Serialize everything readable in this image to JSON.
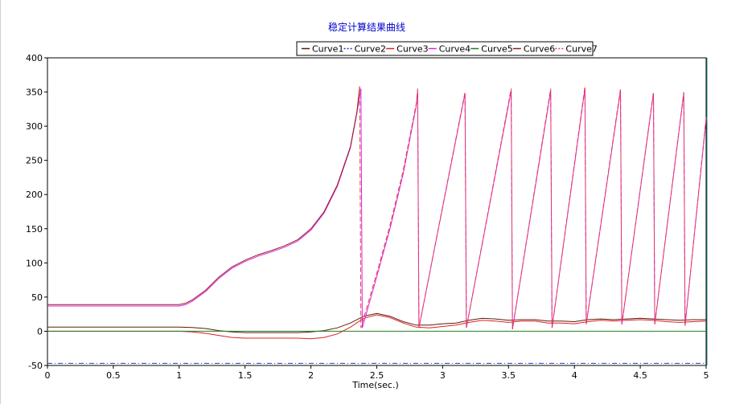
{
  "chart_data": {
    "type": "line",
    "title": "稳定计算结果曲线",
    "xlabel": "Time(sec.)",
    "ylabel": "",
    "xlim": [
      0,
      5
    ],
    "ylim": [
      -50,
      400
    ],
    "x_ticks": [
      "0",
      "0.5",
      "1",
      "1.5",
      "2",
      "2.5",
      "3",
      "3.5",
      "4",
      "4.5",
      "5"
    ],
    "y_ticks": [
      "-50",
      "0",
      "50",
      "100",
      "150",
      "200",
      "250",
      "300",
      "350",
      "400"
    ],
    "grid": true,
    "legend_position": "top-center",
    "series": [
      {
        "name": "Curve1",
        "color": "#5a1e0a",
        "style": "solid",
        "points": [
          [
            0,
            6
          ],
          [
            1,
            6
          ],
          [
            1.1,
            5.5
          ],
          [
            1.2,
            4
          ],
          [
            1.3,
            1
          ],
          [
            1.4,
            -1
          ],
          [
            1.5,
            -2
          ],
          [
            1.7,
            -2
          ],
          [
            1.9,
            -2
          ],
          [
            2.0,
            -1
          ],
          [
            2.1,
            1
          ],
          [
            2.2,
            5
          ],
          [
            2.3,
            12
          ],
          [
            2.4,
            22
          ],
          [
            2.5,
            26
          ],
          [
            2.6,
            22
          ],
          [
            2.7,
            14
          ],
          [
            2.8,
            9
          ],
          [
            2.9,
            9
          ],
          [
            3.0,
            11
          ],
          [
            3.1,
            12
          ],
          [
            3.2,
            16
          ],
          [
            3.3,
            19
          ],
          [
            3.4,
            18
          ],
          [
            3.5,
            16
          ],
          [
            3.6,
            17
          ],
          [
            3.7,
            17
          ],
          [
            3.8,
            15
          ],
          [
            3.9,
            15
          ],
          [
            4.0,
            14
          ],
          [
            4.1,
            17
          ],
          [
            4.2,
            18
          ],
          [
            4.3,
            17
          ],
          [
            4.4,
            18
          ],
          [
            4.5,
            19
          ],
          [
            4.6,
            18
          ],
          [
            4.7,
            17
          ],
          [
            4.8,
            16
          ],
          [
            4.9,
            17
          ],
          [
            5.0,
            17
          ]
        ]
      },
      {
        "name": "Curve2",
        "color": "#1e3cb4",
        "style": "dashdot",
        "points": [
          [
            0,
            -47
          ],
          [
            5,
            -47
          ]
        ]
      },
      {
        "name": "Curve3",
        "color": "#e02020",
        "style": "solid",
        "points": [
          [
            0,
            0
          ],
          [
            1,
            0
          ],
          [
            1.1,
            -1
          ],
          [
            1.2,
            -3
          ],
          [
            1.3,
            -6
          ],
          [
            1.4,
            -9
          ],
          [
            1.5,
            -10
          ],
          [
            1.7,
            -10
          ],
          [
            1.9,
            -10
          ],
          [
            2.0,
            -11
          ],
          [
            2.1,
            -9
          ],
          [
            2.2,
            -4
          ],
          [
            2.3,
            6
          ],
          [
            2.4,
            19
          ],
          [
            2.5,
            24
          ],
          [
            2.6,
            20
          ],
          [
            2.7,
            12
          ],
          [
            2.8,
            6
          ],
          [
            2.9,
            5
          ],
          [
            3.0,
            7
          ],
          [
            3.1,
            9
          ],
          [
            3.2,
            13
          ],
          [
            3.3,
            16
          ],
          [
            3.4,
            15
          ],
          [
            3.5,
            13
          ],
          [
            3.6,
            15
          ],
          [
            3.7,
            15
          ],
          [
            3.8,
            12
          ],
          [
            3.9,
            12
          ],
          [
            4.0,
            11
          ],
          [
            4.1,
            14
          ],
          [
            4.2,
            16
          ],
          [
            4.3,
            15
          ],
          [
            4.4,
            16
          ],
          [
            4.5,
            17
          ],
          [
            4.6,
            16
          ],
          [
            4.7,
            14
          ],
          [
            4.8,
            13
          ],
          [
            4.9,
            14
          ],
          [
            5.0,
            15
          ]
        ]
      },
      {
        "name": "Curve4",
        "color": "#e020e0",
        "style": "solid",
        "points": [
          [
            0,
            37
          ],
          [
            1,
            37
          ],
          [
            1.05,
            39
          ],
          [
            1.1,
            44
          ],
          [
            1.2,
            58
          ],
          [
            1.3,
            77
          ],
          [
            1.4,
            92
          ],
          [
            1.5,
            102
          ],
          [
            1.6,
            110
          ],
          [
            1.7,
            116
          ],
          [
            1.8,
            123
          ],
          [
            1.9,
            132
          ],
          [
            2.0,
            148
          ],
          [
            2.1,
            173
          ],
          [
            2.2,
            212
          ],
          [
            2.3,
            268
          ],
          [
            2.35,
            320
          ],
          [
            2.38,
            355
          ],
          [
            2.39,
            5
          ],
          [
            2.5,
            80
          ],
          [
            2.6,
            150
          ],
          [
            2.7,
            230
          ],
          [
            2.8,
            330
          ],
          [
            2.81,
            352
          ],
          [
            2.82,
            5
          ],
          [
            3.17,
            348
          ],
          [
            3.18,
            5
          ],
          [
            3.52,
            352
          ],
          [
            3.53,
            3
          ],
          [
            3.82,
            352
          ],
          [
            3.83,
            5
          ],
          [
            4.08,
            355
          ],
          [
            4.09,
            10
          ],
          [
            4.35,
            352
          ],
          [
            4.36,
            10
          ],
          [
            4.6,
            348
          ],
          [
            4.61,
            10
          ],
          [
            4.83,
            348
          ],
          [
            4.84,
            8
          ],
          [
            5.0,
            310
          ]
        ]
      },
      {
        "name": "Curve5",
        "color": "#208020",
        "style": "solid",
        "points": [
          [
            0,
            0
          ],
          [
            5,
            0
          ]
        ]
      },
      {
        "name": "Curve6",
        "color": "#8b2020",
        "style": "solid",
        "points": [
          [
            0,
            39
          ],
          [
            1,
            39
          ],
          [
            1.05,
            41
          ],
          [
            1.1,
            46
          ],
          [
            1.2,
            60
          ],
          [
            1.3,
            79
          ],
          [
            1.4,
            94
          ],
          [
            1.5,
            104
          ],
          [
            1.6,
            112
          ],
          [
            1.7,
            118
          ],
          [
            1.8,
            125
          ],
          [
            1.9,
            134
          ],
          [
            2.0,
            150
          ],
          [
            2.1,
            175
          ],
          [
            2.2,
            214
          ],
          [
            2.3,
            270
          ],
          [
            2.35,
            322
          ],
          [
            2.37,
            358
          ]
        ]
      },
      {
        "name": "Curve7",
        "color": "#e04040",
        "style": "dashed",
        "points": [
          [
            2.37,
            358
          ],
          [
            2.38,
            5
          ],
          [
            2.5,
            85
          ],
          [
            2.6,
            155
          ],
          [
            2.7,
            235
          ],
          [
            2.8,
            333
          ],
          [
            2.81,
            355
          ],
          [
            2.82,
            5
          ],
          [
            3.17,
            350
          ],
          [
            3.18,
            5
          ],
          [
            3.52,
            355
          ],
          [
            3.53,
            3
          ],
          [
            3.82,
            355
          ],
          [
            3.83,
            5
          ],
          [
            4.08,
            358
          ],
          [
            4.09,
            10
          ],
          [
            4.35,
            355
          ],
          [
            4.36,
            10
          ],
          [
            4.6,
            350
          ],
          [
            4.61,
            10
          ],
          [
            4.83,
            350
          ],
          [
            4.84,
            8
          ],
          [
            5.0,
            313
          ]
        ]
      }
    ]
  }
}
